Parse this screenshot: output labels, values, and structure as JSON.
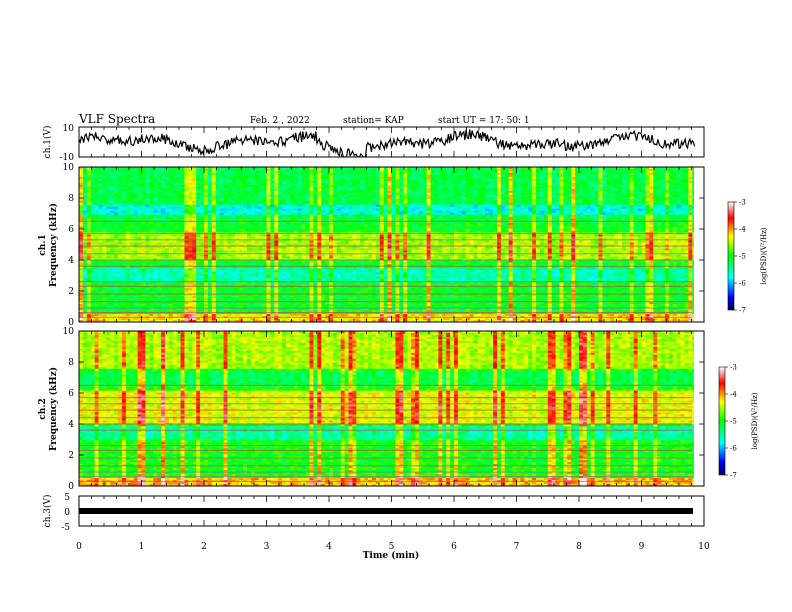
{
  "header": {
    "title": "VLF Spectra",
    "date": "Feb. 2 , 2022",
    "station": "station= KAP",
    "start": "start UT = 17: 50: 1"
  },
  "chart_data": [
    {
      "type": "line",
      "name": "ch1-waveform",
      "ylabel": "ch.1(V)",
      "ylim": [
        -10,
        10
      ],
      "yticks": [
        "10",
        "-10"
      ],
      "x_range_min": [
        0,
        9.85
      ],
      "description_note": ""
    },
    {
      "type": "heatmap",
      "name": "ch1-spectrogram",
      "ylabel_line1": "ch.1",
      "ylabel_line2": "Frequency (kHz)",
      "xlim": [
        0,
        10
      ],
      "ylim": [
        0,
        10
      ],
      "yticks": [
        "0",
        "2",
        "4",
        "6",
        "8",
        "10"
      ],
      "colorbar": {
        "ticks": [
          "-3",
          "-4",
          "-5",
          "-6",
          "-7"
        ],
        "label": "log(PSD)(V²/Hz)",
        "range": [
          -7,
          -3
        ]
      }
    },
    {
      "type": "heatmap",
      "name": "ch2-spectrogram",
      "ylabel_line1": "ch.2",
      "ylabel_line2": "Frequency (kHz)",
      "xlim": [
        0,
        10
      ],
      "ylim": [
        0,
        10
      ],
      "yticks": [
        "0",
        "2",
        "4",
        "6",
        "8",
        "10"
      ],
      "colorbar": {
        "ticks": [
          "-3",
          "-4",
          "-5",
          "-6",
          "-7"
        ],
        "label": "log(PSD)(V²/Hz)",
        "range": [
          -7,
          -3
        ]
      }
    },
    {
      "type": "line",
      "name": "ch3-waveform",
      "ylabel": "ch.3(V)",
      "ylim": [
        -5,
        5
      ],
      "yticks": [
        "5",
        "0",
        "-5"
      ],
      "xlabel": "Time (min)",
      "xticks": [
        "0",
        "1",
        "2",
        "3",
        "4",
        "5",
        "6",
        "7",
        "8",
        "9",
        "10"
      ],
      "value": 0
    }
  ]
}
